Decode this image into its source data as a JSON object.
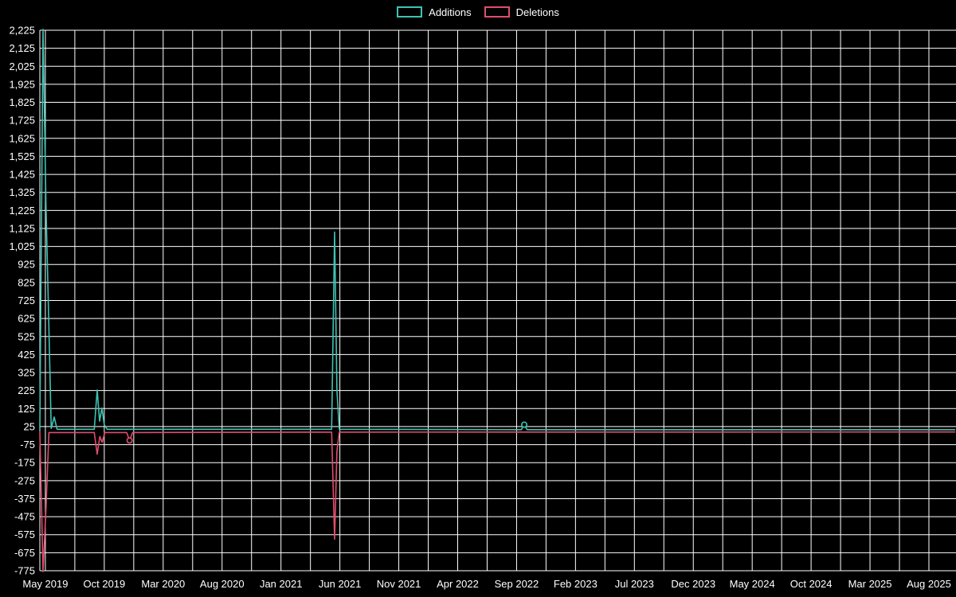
{
  "page": {
    "background_color": "#000000",
    "grid_color": "#ffffff",
    "text_color": "#ffffff"
  },
  "legend": {
    "items": [
      {
        "label": "Additions",
        "color": "#3ec3b3"
      },
      {
        "label": "Deletions",
        "color": "#e14d6d"
      }
    ]
  },
  "chart_data": {
    "type": "line",
    "title": "",
    "xlabel": "",
    "ylabel": "",
    "grid": "on",
    "legend_position": "top-center",
    "x_axis": {
      "unit": "months since May 2019",
      "domain_min": -0.47,
      "domain_max": 77.3,
      "grid_step_months": 2.5,
      "tick_positions": [
        0,
        5,
        10,
        15,
        20,
        25,
        30,
        35,
        40,
        45,
        50,
        55,
        60,
        65,
        70,
        75
      ],
      "tick_labels": [
        "May 2019",
        "Oct 2019",
        "Mar 2020",
        "Aug 2020",
        "Jan 2021",
        "Jun 2021",
        "Nov 2021",
        "Apr 2022",
        "Sep 2022",
        "Feb 2023",
        "Jul 2023",
        "Dec 2023",
        "May 2024",
        "Oct 2024",
        "Mar 2025",
        "Aug 2025"
      ]
    },
    "y_axis": {
      "min": -775,
      "max": 2225,
      "step": 100,
      "tick_labels": [
        "2,225",
        "2,125",
        "2,025",
        "1,925",
        "1,825",
        "1,725",
        "1,625",
        "1,525",
        "1,425",
        "1,325",
        "1,225",
        "1,125",
        "1,025",
        "925",
        "825",
        "725",
        "625",
        "525",
        "425",
        "325",
        "225",
        "125",
        "25",
        "-75",
        "-175",
        "-275",
        "-375",
        "-475",
        "-575",
        "-675",
        "-775"
      ]
    },
    "series": [
      {
        "name": "Additions",
        "color": "#3ec3b3",
        "points": [
          [
            -0.47,
            10
          ],
          [
            -0.2,
            2230
          ],
          [
            0.05,
            1255
          ],
          [
            0.28,
            625
          ],
          [
            0.5,
            15
          ],
          [
            0.75,
            78
          ],
          [
            1.0,
            10
          ],
          [
            4.15,
            10
          ],
          [
            4.4,
            228
          ],
          [
            4.6,
            55
          ],
          [
            4.8,
            128
          ],
          [
            5.0,
            35
          ],
          [
            5.25,
            10
          ],
          [
            24.3,
            10
          ],
          [
            24.55,
            1105
          ],
          [
            24.75,
            228
          ],
          [
            24.95,
            10
          ],
          [
            40.4,
            8
          ],
          [
            40.65,
            36
          ],
          [
            40.9,
            8
          ],
          [
            77.2,
            8
          ]
        ],
        "markers": [
          [
            40.65,
            36
          ]
        ]
      },
      {
        "name": "Deletions",
        "color": "#e14d6d",
        "points": [
          [
            -0.47,
            -5
          ],
          [
            -0.2,
            -780
          ],
          [
            0.05,
            -432
          ],
          [
            0.3,
            -8
          ],
          [
            4.15,
            -8
          ],
          [
            4.4,
            -128
          ],
          [
            4.62,
            -30
          ],
          [
            4.82,
            -62
          ],
          [
            5.05,
            -8
          ],
          [
            6.9,
            -8
          ],
          [
            7.15,
            -52
          ],
          [
            7.4,
            -8
          ],
          [
            24.3,
            -6
          ],
          [
            24.55,
            -600
          ],
          [
            24.75,
            -112
          ],
          [
            24.95,
            -6
          ],
          [
            77.2,
            -5
          ]
        ],
        "markers": [
          [
            7.15,
            -52
          ]
        ]
      }
    ]
  }
}
